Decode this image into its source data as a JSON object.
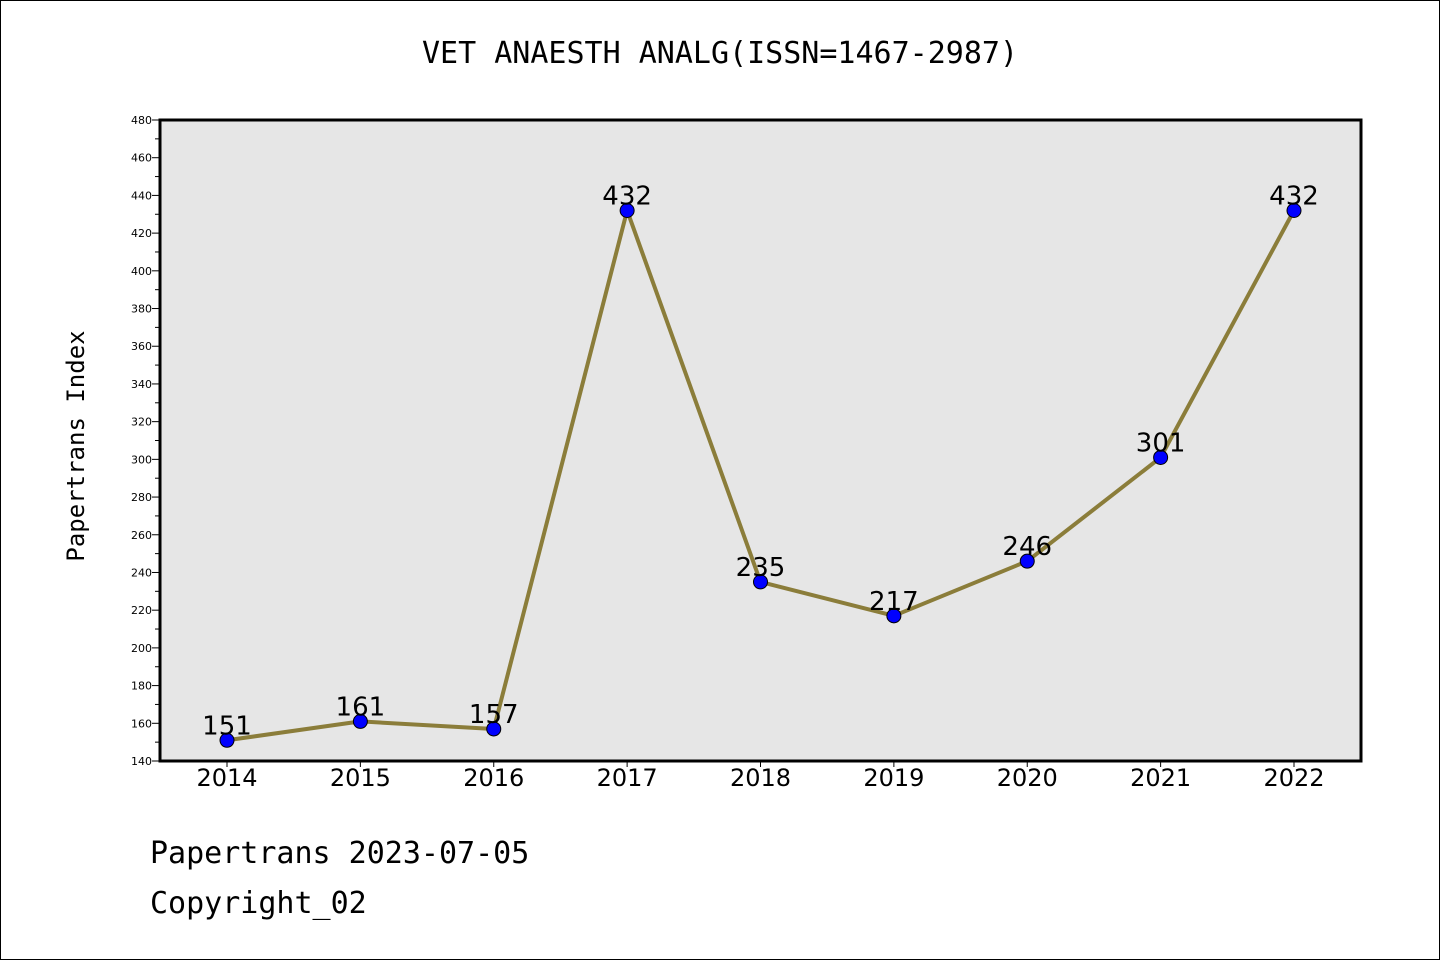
{
  "chart_data": {
    "type": "line",
    "title": "VET ANAESTH ANALG(ISSN=1467-2987)",
    "xlabel": "",
    "ylabel": "Papertrans Index",
    "categories": [
      "2014",
      "2015",
      "2016",
      "2017",
      "2018",
      "2019",
      "2020",
      "2021",
      "2022"
    ],
    "values": [
      151,
      161,
      157,
      432,
      235,
      217,
      246,
      301,
      432
    ],
    "data_labels": [
      "151",
      "161",
      "157",
      "432",
      "235",
      "217",
      "246",
      "301",
      "432"
    ],
    "ylim": [
      140,
      480
    ],
    "yticks": [
      140,
      160,
      180,
      200,
      220,
      240,
      260,
      280,
      300,
      320,
      340,
      360,
      380,
      400,
      420,
      440,
      460,
      480
    ],
    "grid": false,
    "colors": {
      "line": "#8b7d3a",
      "marker": "#0000ff",
      "plot_background": "#e6e6e6"
    }
  },
  "footer": {
    "line1": "Papertrans 2023-07-05",
    "line2": "Copyright_02"
  }
}
